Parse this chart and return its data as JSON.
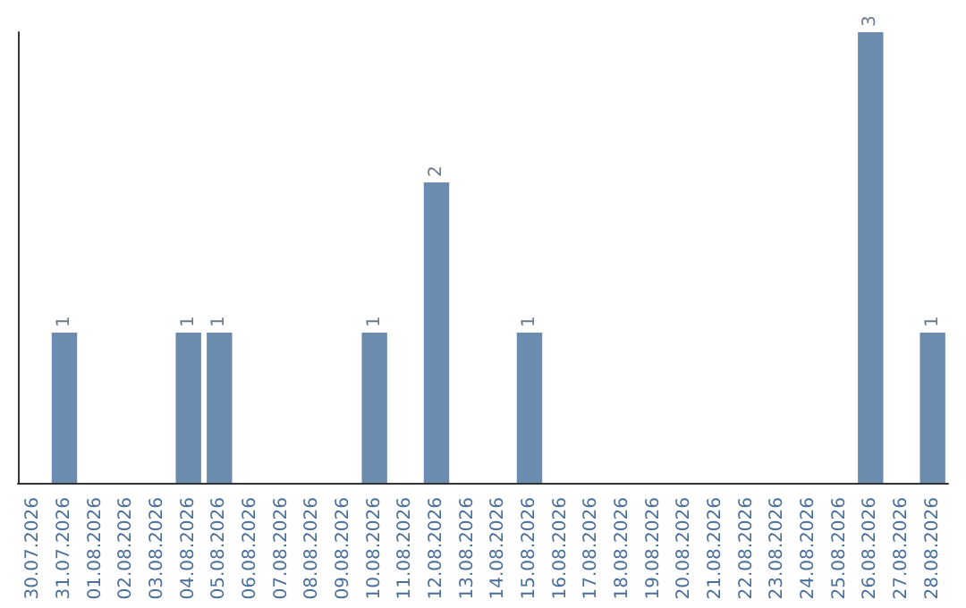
{
  "chart_data": {
    "type": "bar",
    "categories": [
      "30.07.2026",
      "31.07.2026",
      "01.08.2026",
      "02.08.2026",
      "03.08.2026",
      "04.08.2026",
      "05.08.2026",
      "06.08.2026",
      "07.08.2026",
      "08.08.2026",
      "09.08.2026",
      "10.08.2026",
      "11.08.2026",
      "12.08.2026",
      "13.08.2026",
      "14.08.2026",
      "15.08.2026",
      "16.08.2026",
      "17.08.2026",
      "18.08.2026",
      "19.08.2026",
      "20.08.2026",
      "21.08.2026",
      "22.08.2026",
      "23.08.2026",
      "24.08.2026",
      "25.08.2026",
      "26.08.2026",
      "27.08.2026",
      "28.08.2026"
    ],
    "values": [
      0,
      1,
      0,
      0,
      0,
      1,
      1,
      0,
      0,
      0,
      0,
      1,
      0,
      2,
      0,
      0,
      1,
      0,
      0,
      0,
      0,
      0,
      0,
      0,
      0,
      0,
      0,
      3,
      0,
      1
    ],
    "value_labels": [
      null,
      "1",
      null,
      null,
      null,
      "1",
      "1",
      null,
      null,
      null,
      null,
      "1",
      null,
      "2",
      null,
      null,
      "1",
      null,
      null,
      null,
      null,
      null,
      null,
      null,
      null,
      null,
      null,
      "3",
      null,
      "1"
    ],
    "color": "#6b8cae",
    "tick_labels": "x"
  }
}
